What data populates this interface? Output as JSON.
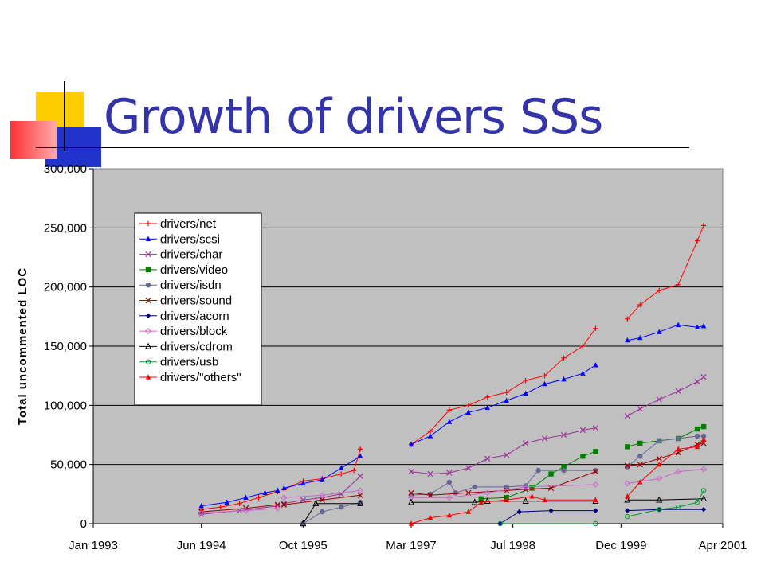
{
  "slide": {
    "title": "Growth of drivers SSs"
  },
  "colors": {
    "title": "#3333aa",
    "plot_bg": "#c0c0c0"
  },
  "chart_data": {
    "type": "line",
    "title": "",
    "xlabel": "",
    "ylabel": "Total uncommented LOC",
    "x_range": [
      "1993-01",
      "2001-04"
    ],
    "ylim": [
      0,
      300000
    ],
    "grid": true,
    "legend_position": "top-left",
    "y_ticks": [
      "0",
      "50,000",
      "100,000",
      "150,000",
      "200,000",
      "250,000",
      "300,000"
    ],
    "x_ticks": [
      {
        "label": "Jan 1993",
        "date": "1993-01"
      },
      {
        "label": "Jun 1994",
        "date": "1994-06"
      },
      {
        "label": "Oct 1995",
        "date": "1995-10"
      },
      {
        "label": "Mar 1997",
        "date": "1997-03"
      },
      {
        "label": "Jul 1998",
        "date": "1998-07"
      },
      {
        "label": "Dec 1999",
        "date": "1999-12"
      },
      {
        "label": "Apr 2001",
        "date": "2001-04"
      }
    ],
    "series": [
      {
        "name": "drivers/net",
        "color": "#ff0000",
        "marker": "plus",
        "segments": [
          [
            [
              "1994-06",
              12000
            ],
            [
              "1994-09",
              14000
            ],
            [
              "1994-12",
              17000
            ],
            [
              "1995-03",
              22000
            ],
            [
              "1995-06",
              27000
            ]
          ],
          [
            [
              "1995-07",
              29000
            ],
            [
              "1995-10",
              36000
            ],
            [
              "1996-01",
              38000
            ],
            [
              "1996-04",
              42000
            ],
            [
              "1996-06",
              45000
            ],
            [
              "1996-07",
              63000
            ]
          ],
          [
            [
              "1997-03",
              67000
            ],
            [
              "1997-06",
              78000
            ],
            [
              "1997-09",
              96000
            ],
            [
              "1997-12",
              100000
            ],
            [
              "1998-03",
              107000
            ],
            [
              "1998-06",
              111000
            ],
            [
              "1998-09",
              121000
            ],
            [
              "1998-12",
              125000
            ],
            [
              "1999-03",
              140000
            ],
            [
              "1999-06",
              150000
            ],
            [
              "1999-08",
              165000
            ]
          ],
          [
            [
              "2000-01",
              173000
            ],
            [
              "2000-03",
              185000
            ],
            [
              "2000-06",
              197000
            ],
            [
              "2000-09",
              202000
            ],
            [
              "2000-12",
              239000
            ],
            [
              "2001-01",
              252000
            ]
          ]
        ]
      },
      {
        "name": "drivers/scsi",
        "color": "#0000ff",
        "marker": "triangle",
        "segments": [
          [
            [
              "1994-06",
              15000
            ],
            [
              "1994-10",
              18000
            ],
            [
              "1995-01",
              22000
            ],
            [
              "1995-04",
              26000
            ],
            [
              "1995-06",
              28000
            ]
          ],
          [
            [
              "1995-07",
              30000
            ],
            [
              "1995-10",
              34000
            ],
            [
              "1996-01",
              37000
            ],
            [
              "1996-04",
              47000
            ],
            [
              "1996-07",
              57000
            ]
          ],
          [
            [
              "1997-03",
              67000
            ],
            [
              "1997-06",
              74000
            ],
            [
              "1997-09",
              86000
            ],
            [
              "1997-12",
              94000
            ],
            [
              "1998-03",
              98000
            ],
            [
              "1998-06",
              104000
            ],
            [
              "1998-09",
              110000
            ],
            [
              "1998-12",
              118000
            ],
            [
              "1999-03",
              122000
            ],
            [
              "1999-06",
              127000
            ],
            [
              "1999-08",
              134000
            ]
          ],
          [
            [
              "2000-01",
              155000
            ],
            [
              "2000-03",
              157000
            ],
            [
              "2000-06",
              162000
            ],
            [
              "2000-09",
              168000
            ],
            [
              "2000-12",
              166000
            ],
            [
              "2001-01",
              167000
            ]
          ]
        ]
      },
      {
        "name": "drivers/char",
        "color": "#993399",
        "marker": "x",
        "segments": [
          [
            [
              "1994-06",
              8000
            ],
            [
              "1994-12",
              11000
            ],
            [
              "1995-06",
              15000
            ]
          ],
          [
            [
              "1995-07",
              17000
            ],
            [
              "1995-10",
              20000
            ],
            [
              "1996-01",
              22000
            ],
            [
              "1996-04",
              25000
            ],
            [
              "1996-07",
              40000
            ]
          ],
          [
            [
              "1997-03",
              44000
            ],
            [
              "1997-06",
              42000
            ],
            [
              "1997-09",
              43000
            ],
            [
              "1997-12",
              47000
            ],
            [
              "1998-03",
              55000
            ],
            [
              "1998-06",
              58000
            ],
            [
              "1998-09",
              68000
            ],
            [
              "1998-12",
              72000
            ],
            [
              "1999-03",
              75000
            ],
            [
              "1999-06",
              79000
            ],
            [
              "1999-08",
              81000
            ]
          ],
          [
            [
              "2000-01",
              91000
            ],
            [
              "2000-03",
              97000
            ],
            [
              "2000-06",
              105000
            ],
            [
              "2000-09",
              112000
            ],
            [
              "2000-12",
              120000
            ],
            [
              "2001-01",
              124000
            ]
          ]
        ]
      },
      {
        "name": "drivers/video",
        "color": "#008000",
        "marker": "square",
        "segments": [
          [
            [
              "1998-02",
              21000
            ],
            [
              "1998-06",
              22000
            ],
            [
              "1998-10",
              30000
            ],
            [
              "1999-01",
              42000
            ],
            [
              "1999-03",
              48000
            ],
            [
              "1999-06",
              57000
            ],
            [
              "1999-08",
              61000
            ]
          ],
          [
            [
              "2000-01",
              65000
            ],
            [
              "2000-03",
              68000
            ],
            [
              "2000-06",
              70000
            ],
            [
              "2000-09",
              72000
            ],
            [
              "2000-12",
              80000
            ],
            [
              "2001-01",
              82000
            ]
          ]
        ]
      },
      {
        "name": "drivers/isdn",
        "color": "#666699",
        "marker": "circle",
        "segments": [
          [
            [
              "1995-10",
              0
            ],
            [
              "1996-01",
              10000
            ],
            [
              "1996-04",
              14000
            ],
            [
              "1996-07",
              18000
            ]
          ],
          [
            [
              "1997-03",
              24000
            ],
            [
              "1997-06",
              25000
            ],
            [
              "1997-09",
              35000
            ],
            [
              "1997-10",
              26000
            ],
            [
              "1998-01",
              31000
            ],
            [
              "1998-06",
              31000
            ],
            [
              "1998-09",
              32000
            ],
            [
              "1998-11",
              45000
            ],
            [
              "1999-03",
              45000
            ],
            [
              "1999-08",
              45000
            ]
          ],
          [
            [
              "2000-01",
              48000
            ],
            [
              "2000-03",
              57000
            ],
            [
              "2000-06",
              70000
            ],
            [
              "2000-09",
              72000
            ],
            [
              "2000-12",
              74000
            ],
            [
              "2001-01",
              74000
            ]
          ]
        ]
      },
      {
        "name": "drivers/sound",
        "color": "#990000",
        "marker": "x",
        "segments": [
          [
            [
              "1994-06",
              10000
            ],
            [
              "1995-01",
              13000
            ],
            [
              "1995-06",
              16000
            ]
          ],
          [
            [
              "1995-07",
              16000
            ],
            [
              "1996-01",
              20000
            ],
            [
              "1996-07",
              24000
            ]
          ],
          [
            [
              "1997-03",
              26000
            ],
            [
              "1997-06",
              24000
            ],
            [
              "1997-12",
              26000
            ],
            [
              "1998-06",
              28000
            ],
            [
              "1998-09",
              29000
            ],
            [
              "1999-01",
              30000
            ],
            [
              "1999-08",
              44000
            ]
          ],
          [
            [
              "2000-01",
              49000
            ],
            [
              "2000-03",
              50000
            ],
            [
              "2000-06",
              55000
            ],
            [
              "2000-09",
              60000
            ],
            [
              "2000-12",
              67000
            ],
            [
              "2001-01",
              68000
            ]
          ]
        ]
      },
      {
        "name": "drivers/acorn",
        "color": "#000080",
        "marker": "diamond",
        "segments": [
          [
            [
              "1998-05",
              0
            ],
            [
              "1998-08",
              10000
            ],
            [
              "1999-01",
              11000
            ],
            [
              "1999-08",
              11000
            ]
          ],
          [
            [
              "2000-01",
              11000
            ],
            [
              "2000-06",
              12000
            ],
            [
              "2001-01",
              12000
            ]
          ]
        ]
      },
      {
        "name": "drivers/block",
        "color": "#cc66cc",
        "marker": "diamond-open",
        "segments": [
          [
            [
              "1994-06",
              9000
            ],
            [
              "1995-01",
              11000
            ],
            [
              "1995-06",
              13000
            ]
          ],
          [
            [
              "1995-07",
              22000
            ],
            [
              "1996-01",
              24000
            ],
            [
              "1996-07",
              28000
            ]
          ],
          [
            [
              "1997-03",
              22000
            ],
            [
              "1997-09",
              22000
            ],
            [
              "1998-03",
              26000
            ],
            [
              "1998-09",
              31000
            ],
            [
              "1999-08",
              33000
            ]
          ],
          [
            [
              "2000-01",
              34000
            ],
            [
              "2000-06",
              38000
            ],
            [
              "2000-09",
              44000
            ],
            [
              "2001-01",
              46000
            ]
          ]
        ]
      },
      {
        "name": "drivers/cdrom",
        "color": "#000000",
        "marker": "triangle-open",
        "segments": [
          [
            [
              "1995-10",
              0
            ],
            [
              "1995-12",
              17000
            ],
            [
              "1996-07",
              17000
            ]
          ],
          [
            [
              "1997-03",
              18000
            ],
            [
              "1998-01",
              18000
            ],
            [
              "1998-03",
              19000
            ],
            [
              "1998-09",
              19000
            ],
            [
              "1999-08",
              19000
            ]
          ],
          [
            [
              "2000-01",
              20000
            ],
            [
              "2000-06",
              20000
            ],
            [
              "2001-01",
              21000
            ]
          ]
        ]
      },
      {
        "name": "drivers/usb",
        "color": "#009933",
        "marker": "circle-open",
        "segments": [
          [
            [
              "1998-05",
              0
            ],
            [
              "1999-08",
              0
            ]
          ],
          [
            [
              "2000-01",
              6000
            ],
            [
              "2000-06",
              12000
            ],
            [
              "2000-09",
              14000
            ],
            [
              "2000-12",
              18000
            ],
            [
              "2001-01",
              28000
            ]
          ]
        ]
      },
      {
        "name": "drivers/\"others\"",
        "color": "#ff0000",
        "marker": "triangle",
        "segments": [
          [
            [
              "1997-03",
              0
            ],
            [
              "1997-06",
              5000
            ],
            [
              "1997-09",
              7000
            ],
            [
              "1997-12",
              10000
            ],
            [
              "1998-02",
              18000
            ],
            [
              "1998-06",
              20000
            ],
            [
              "1998-10",
              23000
            ],
            [
              "1998-12",
              20000
            ],
            [
              "1999-08",
              20000
            ]
          ],
          [
            [
              "2000-01",
              23000
            ],
            [
              "2000-03",
              35000
            ],
            [
              "2000-06",
              50000
            ],
            [
              "2000-09",
              63000
            ],
            [
              "2000-12",
              65000
            ],
            [
              "2001-01",
              71000
            ]
          ]
        ]
      }
    ]
  }
}
